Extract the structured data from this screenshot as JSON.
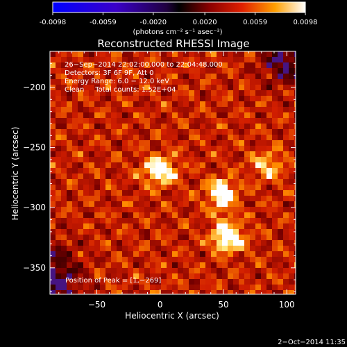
{
  "colorbar": {
    "tick_labels": [
      "-0.0098",
      "-0.0059",
      "-0.0020",
      "0.0020",
      "0.0059",
      "0.0098"
    ],
    "tick_values": [
      -0.0098,
      -0.0059,
      -0.002,
      0.002,
      0.0059,
      0.0098
    ],
    "range": [
      -0.0098,
      0.0098
    ],
    "unit_label": "(photons cm⁻² s⁻¹ asec⁻²)"
  },
  "image": {
    "title": "Reconstructed RHESSI Image",
    "xlabel": "Heliocentric X (arcsec)",
    "ylabel": "Heliocentric Y (arcsec)",
    "xlim": [
      -87,
      107
    ],
    "ylim": [
      -372,
      -170
    ],
    "x_ticks": [
      -50,
      0,
      50,
      100
    ],
    "y_ticks": [
      -200,
      -250,
      -300,
      -350
    ],
    "x_tick_labels": [
      "−50",
      "0",
      "50",
      "100"
    ],
    "y_tick_labels": [
      "−200",
      "−250",
      "−300",
      "−350"
    ],
    "info_lines": [
      "26−Sep−2014 22:02:00.000 to 22:04:48.000",
      "Detectors: 3F 6F 9F, Att 0",
      "Energy Range: 6.0 − 12.0 keV",
      "Clean     Total counts: 1.52E+04"
    ],
    "peak_label": "Position of Peak = [1,−269]",
    "peak_position": [
      1,
      -269
    ],
    "sources": [
      {
        "x": 0,
        "y": -269,
        "intensity": 1.0
      },
      {
        "x": 55,
        "y": -325,
        "intensity": 0.85
      },
      {
        "x": 48,
        "y": -288,
        "intensity": 0.65
      },
      {
        "x": 85,
        "y": -265,
        "intensity": 0.6
      }
    ]
  },
  "footer": {
    "date_stamp": "2−Oct−2014 11:35"
  },
  "colors": {
    "background": "#000000",
    "axis": "#ffffff"
  }
}
